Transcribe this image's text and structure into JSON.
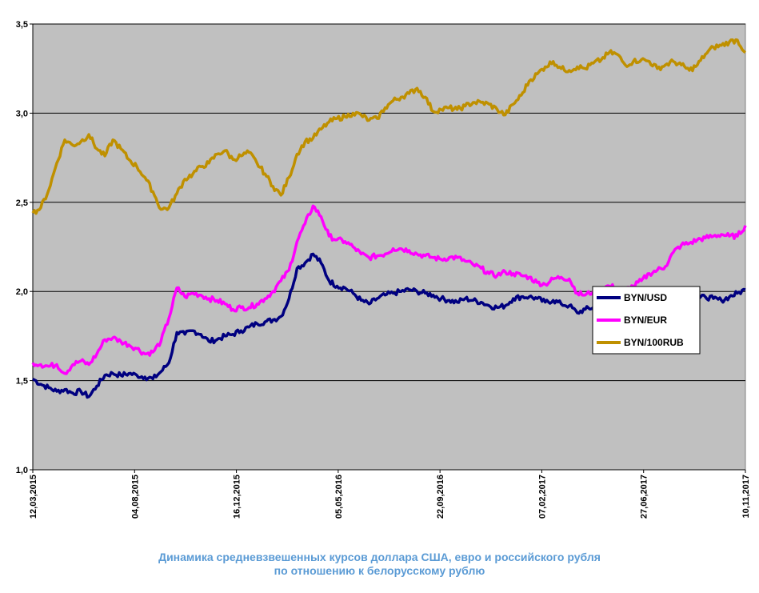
{
  "chart_data": {
    "type": "line",
    "title": "Динамика  средневзвешенных курсов доллара США, евро и российского рубля",
    "subtitle": "по отношению к белорусскому рублю",
    "ylim": [
      1.0,
      3.5
    ],
    "yticks": [
      1.0,
      1.5,
      2.0,
      2.5,
      3.0,
      3.5
    ],
    "ytick_labels": [
      "1,0",
      "1,5",
      "2,0",
      "2,5",
      "3,0",
      "3,5"
    ],
    "xticks": [
      "12,03,2015",
      "04,08,2015",
      "16,12,2015",
      "05,05,2016",
      "22,09,2016",
      "07,02,2017",
      "27,06,2017",
      "10,11,2017"
    ],
    "grid": true,
    "legend_position": "right",
    "series": [
      {
        "name": "BYN/USD",
        "color": "#000080",
        "values": [
          1.51,
          1.48,
          1.46,
          1.44,
          1.45,
          1.43,
          1.44,
          1.41,
          1.47,
          1.53,
          1.54,
          1.53,
          1.54,
          1.53,
          1.52,
          1.51,
          1.55,
          1.6,
          1.77,
          1.76,
          1.78,
          1.76,
          1.72,
          1.73,
          1.75,
          1.76,
          1.78,
          1.8,
          1.82,
          1.83,
          1.84,
          1.86,
          1.96,
          2.13,
          2.16,
          2.21,
          2.16,
          2.06,
          2.03,
          2.02,
          1.99,
          1.95,
          1.93,
          1.96,
          1.98,
          1.99,
          2.0,
          2.01,
          2.0,
          1.99,
          1.98,
          1.96,
          1.95,
          1.94,
          1.96,
          1.95,
          1.94,
          1.92,
          1.91,
          1.92,
          1.96,
          1.97,
          1.97,
          1.96,
          1.94,
          1.95,
          1.93,
          1.92,
          1.88,
          1.9,
          1.91,
          1.89,
          1.88,
          1.87,
          1.86,
          1.85,
          1.86,
          1.88,
          1.9,
          1.92,
          1.93,
          1.94,
          1.95,
          1.96,
          1.97,
          1.96,
          1.95,
          1.97,
          1.99,
          2.01
        ]
      },
      {
        "name": "BYN/EUR",
        "color": "#ff00ff",
        "values": [
          1.6,
          1.59,
          1.58,
          1.59,
          1.54,
          1.59,
          1.61,
          1.59,
          1.65,
          1.73,
          1.74,
          1.72,
          1.7,
          1.68,
          1.65,
          1.66,
          1.72,
          1.85,
          2.02,
          1.97,
          1.99,
          1.98,
          1.96,
          1.95,
          1.93,
          1.9,
          1.91,
          1.91,
          1.93,
          1.96,
          2.0,
          2.06,
          2.12,
          2.28,
          2.38,
          2.48,
          2.42,
          2.31,
          2.29,
          2.28,
          2.25,
          2.21,
          2.19,
          2.2,
          2.21,
          2.24,
          2.24,
          2.23,
          2.21,
          2.2,
          2.19,
          2.18,
          2.19,
          2.19,
          2.17,
          2.15,
          2.13,
          2.1,
          2.09,
          2.11,
          2.1,
          2.09,
          2.08,
          2.05,
          2.04,
          2.07,
          2.08,
          2.07,
          1.99,
          1.98,
          2.0,
          2.02,
          2.03,
          2.02,
          2.01,
          2.03,
          2.06,
          2.1,
          2.12,
          2.14,
          2.22,
          2.26,
          2.27,
          2.29,
          2.3,
          2.31,
          2.32,
          2.31,
          2.31,
          2.37
        ]
      },
      {
        "name": "BYN/100RUB",
        "color": "#bf9000",
        "values": [
          2.44,
          2.47,
          2.57,
          2.72,
          2.85,
          2.82,
          2.84,
          2.88,
          2.8,
          2.76,
          2.85,
          2.8,
          2.74,
          2.7,
          2.64,
          2.56,
          2.46,
          2.47,
          2.55,
          2.63,
          2.66,
          2.7,
          2.72,
          2.77,
          2.79,
          2.74,
          2.76,
          2.78,
          2.72,
          2.66,
          2.59,
          2.54,
          2.64,
          2.77,
          2.84,
          2.86,
          2.91,
          2.95,
          2.97,
          2.98,
          3.0,
          2.99,
          2.96,
          2.97,
          3.03,
          3.07,
          3.09,
          3.11,
          3.14,
          3.09,
          3.01,
          3.02,
          3.03,
          3.02,
          3.04,
          3.06,
          3.06,
          3.05,
          3.02,
          2.99,
          3.05,
          3.1,
          3.18,
          3.22,
          3.26,
          3.29,
          3.25,
          3.24,
          3.26,
          3.25,
          3.28,
          3.3,
          3.34,
          3.33,
          3.27,
          3.29,
          3.3,
          3.29,
          3.25,
          3.27,
          3.29,
          3.27,
          3.24,
          3.27,
          3.33,
          3.37,
          3.38,
          3.4,
          3.41,
          3.34
        ]
      }
    ]
  }
}
